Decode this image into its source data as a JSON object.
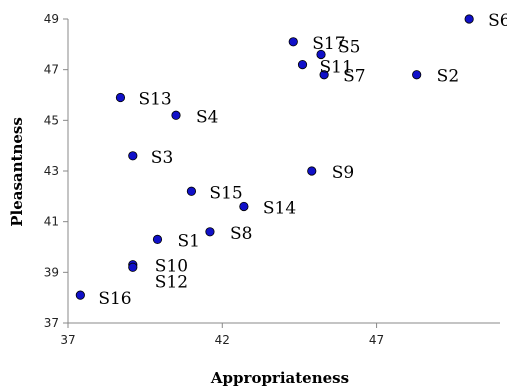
{
  "chart_data": {
    "type": "scatter",
    "title": "",
    "xlabel": "Appropriateness",
    "ylabel": "Pleasantness",
    "xlim": [
      37,
      51
    ],
    "ylim": [
      37,
      49
    ],
    "xticks": [
      37,
      42,
      47
    ],
    "yticks": [
      37,
      39,
      41,
      43,
      45,
      47,
      49
    ],
    "grid": false,
    "marker_color": "#1010c8",
    "points": [
      {
        "label": "S1",
        "x": 39.9,
        "y": 40.3
      },
      {
        "label": "S2",
        "x": 48.3,
        "y": 46.8
      },
      {
        "label": "S3",
        "x": 39.1,
        "y": 43.6
      },
      {
        "label": "S4",
        "x": 40.5,
        "y": 45.2
      },
      {
        "label": "S5",
        "x": 45.2,
        "y": 47.6
      },
      {
        "label": "S6",
        "x": 50.0,
        "y": 49.0
      },
      {
        "label": "S7",
        "x": 45.3,
        "y": 46.8
      },
      {
        "label": "S8",
        "x": 41.6,
        "y": 40.6
      },
      {
        "label": "S9",
        "x": 44.9,
        "y": 43.0
      },
      {
        "label": "S10",
        "x": 39.1,
        "y": 39.3
      },
      {
        "label": "S11",
        "x": 44.6,
        "y": 47.2
      },
      {
        "label": "S12",
        "x": 39.1,
        "y": 39.2
      },
      {
        "label": "S13",
        "x": 38.7,
        "y": 45.9
      },
      {
        "label": "S14",
        "x": 42.7,
        "y": 41.6
      },
      {
        "label": "S15",
        "x": 41.0,
        "y": 42.2
      },
      {
        "label": "S16",
        "x": 37.4,
        "y": 38.1
      },
      {
        "label": "S17",
        "x": 44.3,
        "y": 48.1
      }
    ]
  }
}
